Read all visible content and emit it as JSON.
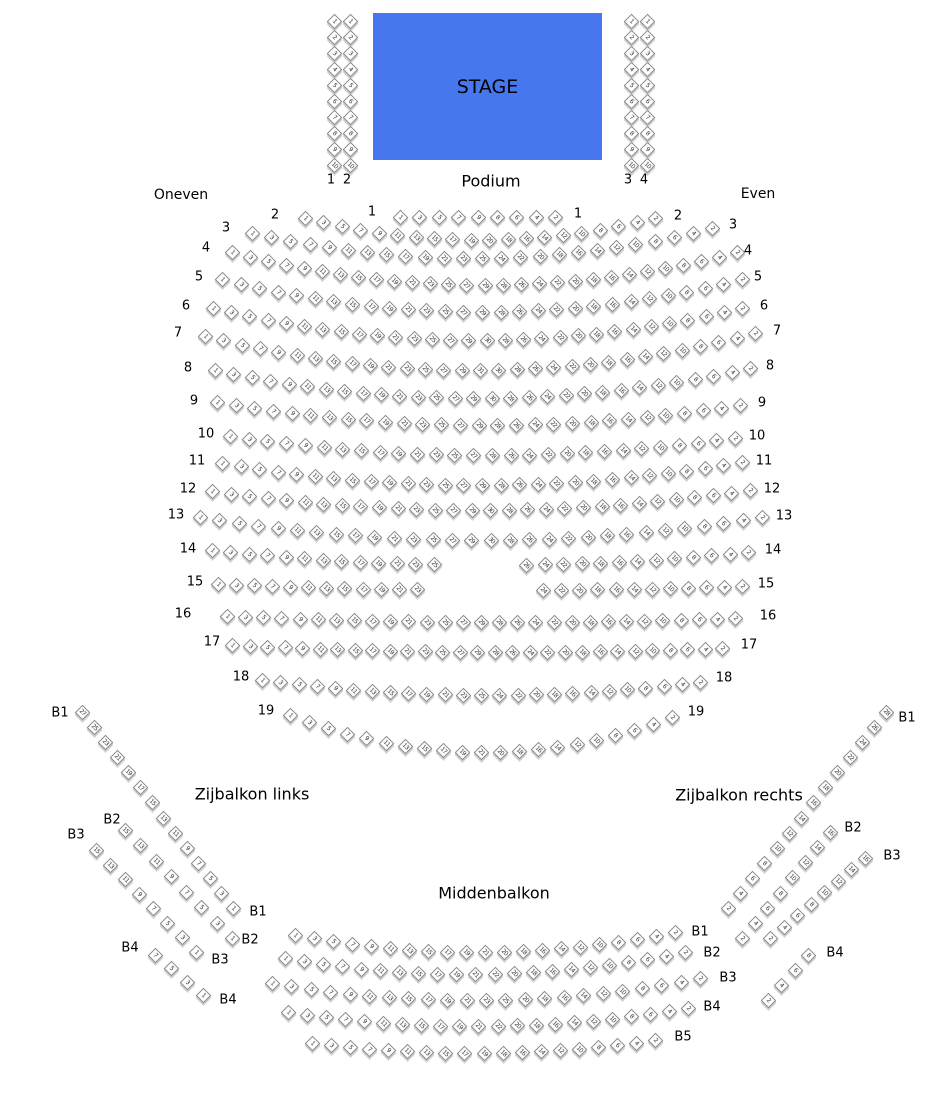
{
  "colors": {
    "stage": "#4677ee",
    "seat_border": "#8a8a8a"
  },
  "stage": {
    "label": "STAGE"
  },
  "labels": {
    "podium": "Podium",
    "odd": "Oneven",
    "even": "Even",
    "side_left": "Zijbalkon links",
    "side_right": "Zijbalkon rechts",
    "middle": "Middenbalkon"
  },
  "stage_columns": [
    {
      "label": "1",
      "seats": [
        1,
        2,
        3,
        4,
        5,
        6,
        7,
        8,
        9,
        10
      ]
    },
    {
      "label": "2",
      "seats": [
        1,
        2,
        3,
        4,
        5,
        6,
        7,
        8,
        9,
        10
      ]
    },
    {
      "label": "3",
      "seats": [
        1,
        2,
        3,
        4,
        5,
        6,
        7,
        8,
        9,
        10
      ]
    },
    {
      "label": "4",
      "seats": [
        1,
        2,
        3,
        4,
        5,
        6,
        7,
        8,
        9,
        10
      ]
    }
  ],
  "parterre": [
    {
      "label": "1",
      "odd_max": 9,
      "even_max": 8
    },
    {
      "label": "2",
      "odd_max": 19,
      "even_max": 20
    },
    {
      "label": "3",
      "odd_max": 25,
      "even_max": 24
    },
    {
      "label": "4",
      "odd_max": 29,
      "even_max": 28
    },
    {
      "label": "5",
      "odd_max": 29,
      "even_max": 28
    },
    {
      "label": "6",
      "odd_max": 29,
      "even_max": 30
    },
    {
      "label": "7",
      "odd_max": 31,
      "even_max": 30
    },
    {
      "label": "8",
      "odd_max": 29,
      "even_max": 30
    },
    {
      "label": "9",
      "odd_max": 29,
      "even_max": 28
    },
    {
      "label": "10",
      "odd_max": 27,
      "even_max": 28
    },
    {
      "label": "11",
      "odd_max": 29,
      "even_max": 28
    },
    {
      "label": "12",
      "odd_max": 29,
      "even_max": 30
    },
    {
      "label": "13",
      "odd_max": 29,
      "even_max": 30
    },
    {
      "label": "14",
      "odd_max": 25,
      "even_max": 26
    },
    {
      "label": "15",
      "odd_max": 23,
      "even_max": 24
    },
    {
      "label": "16",
      "odd_max": 29,
      "even_max": 28
    },
    {
      "label": "17",
      "odd_max": 29,
      "even_max": 28
    },
    {
      "label": "18",
      "odd_max": 25,
      "even_max": 24
    },
    {
      "label": "19",
      "odd_max": 21,
      "even_max": 20
    }
  ],
  "side_left": [
    {
      "label": "B1",
      "seats": [
        27,
        25,
        23,
        21,
        19,
        17,
        15,
        13,
        11,
        9,
        7,
        5,
        3,
        1
      ]
    },
    {
      "label": "B2",
      "seats": [
        15,
        13,
        11,
        9,
        7,
        5,
        3,
        1
      ]
    },
    {
      "label": "B3",
      "seats": [
        15,
        13,
        11,
        9,
        7,
        5,
        3,
        1
      ]
    },
    {
      "label": "B4",
      "seats": [
        7,
        5,
        3,
        1
      ]
    }
  ],
  "side_right": [
    {
      "label": "B1",
      "seats": [
        2,
        4,
        6,
        8,
        10,
        12,
        14,
        16,
        18,
        20,
        22,
        24,
        26,
        28
      ]
    },
    {
      "label": "B2",
      "seats": [
        2,
        4,
        6,
        8,
        10,
        12,
        14,
        16
      ]
    },
    {
      "label": "B3",
      "seats": [
        2,
        4,
        6,
        8,
        10,
        12,
        14,
        16
      ]
    },
    {
      "label": "B4",
      "seats": [
        2,
        4,
        6,
        8
      ]
    }
  ],
  "middle": [
    {
      "label": "B1",
      "odd_max": 21,
      "even_max": 20
    },
    {
      "label": "B2",
      "odd_max": 21,
      "even_max": 22
    },
    {
      "label": "B3",
      "odd_max": 25,
      "even_max": 20
    },
    {
      "label": "B4",
      "odd_max": 21,
      "even_max": 22
    },
    {
      "label": "B5",
      "odd_max": 19,
      "even_max": 18
    }
  ]
}
